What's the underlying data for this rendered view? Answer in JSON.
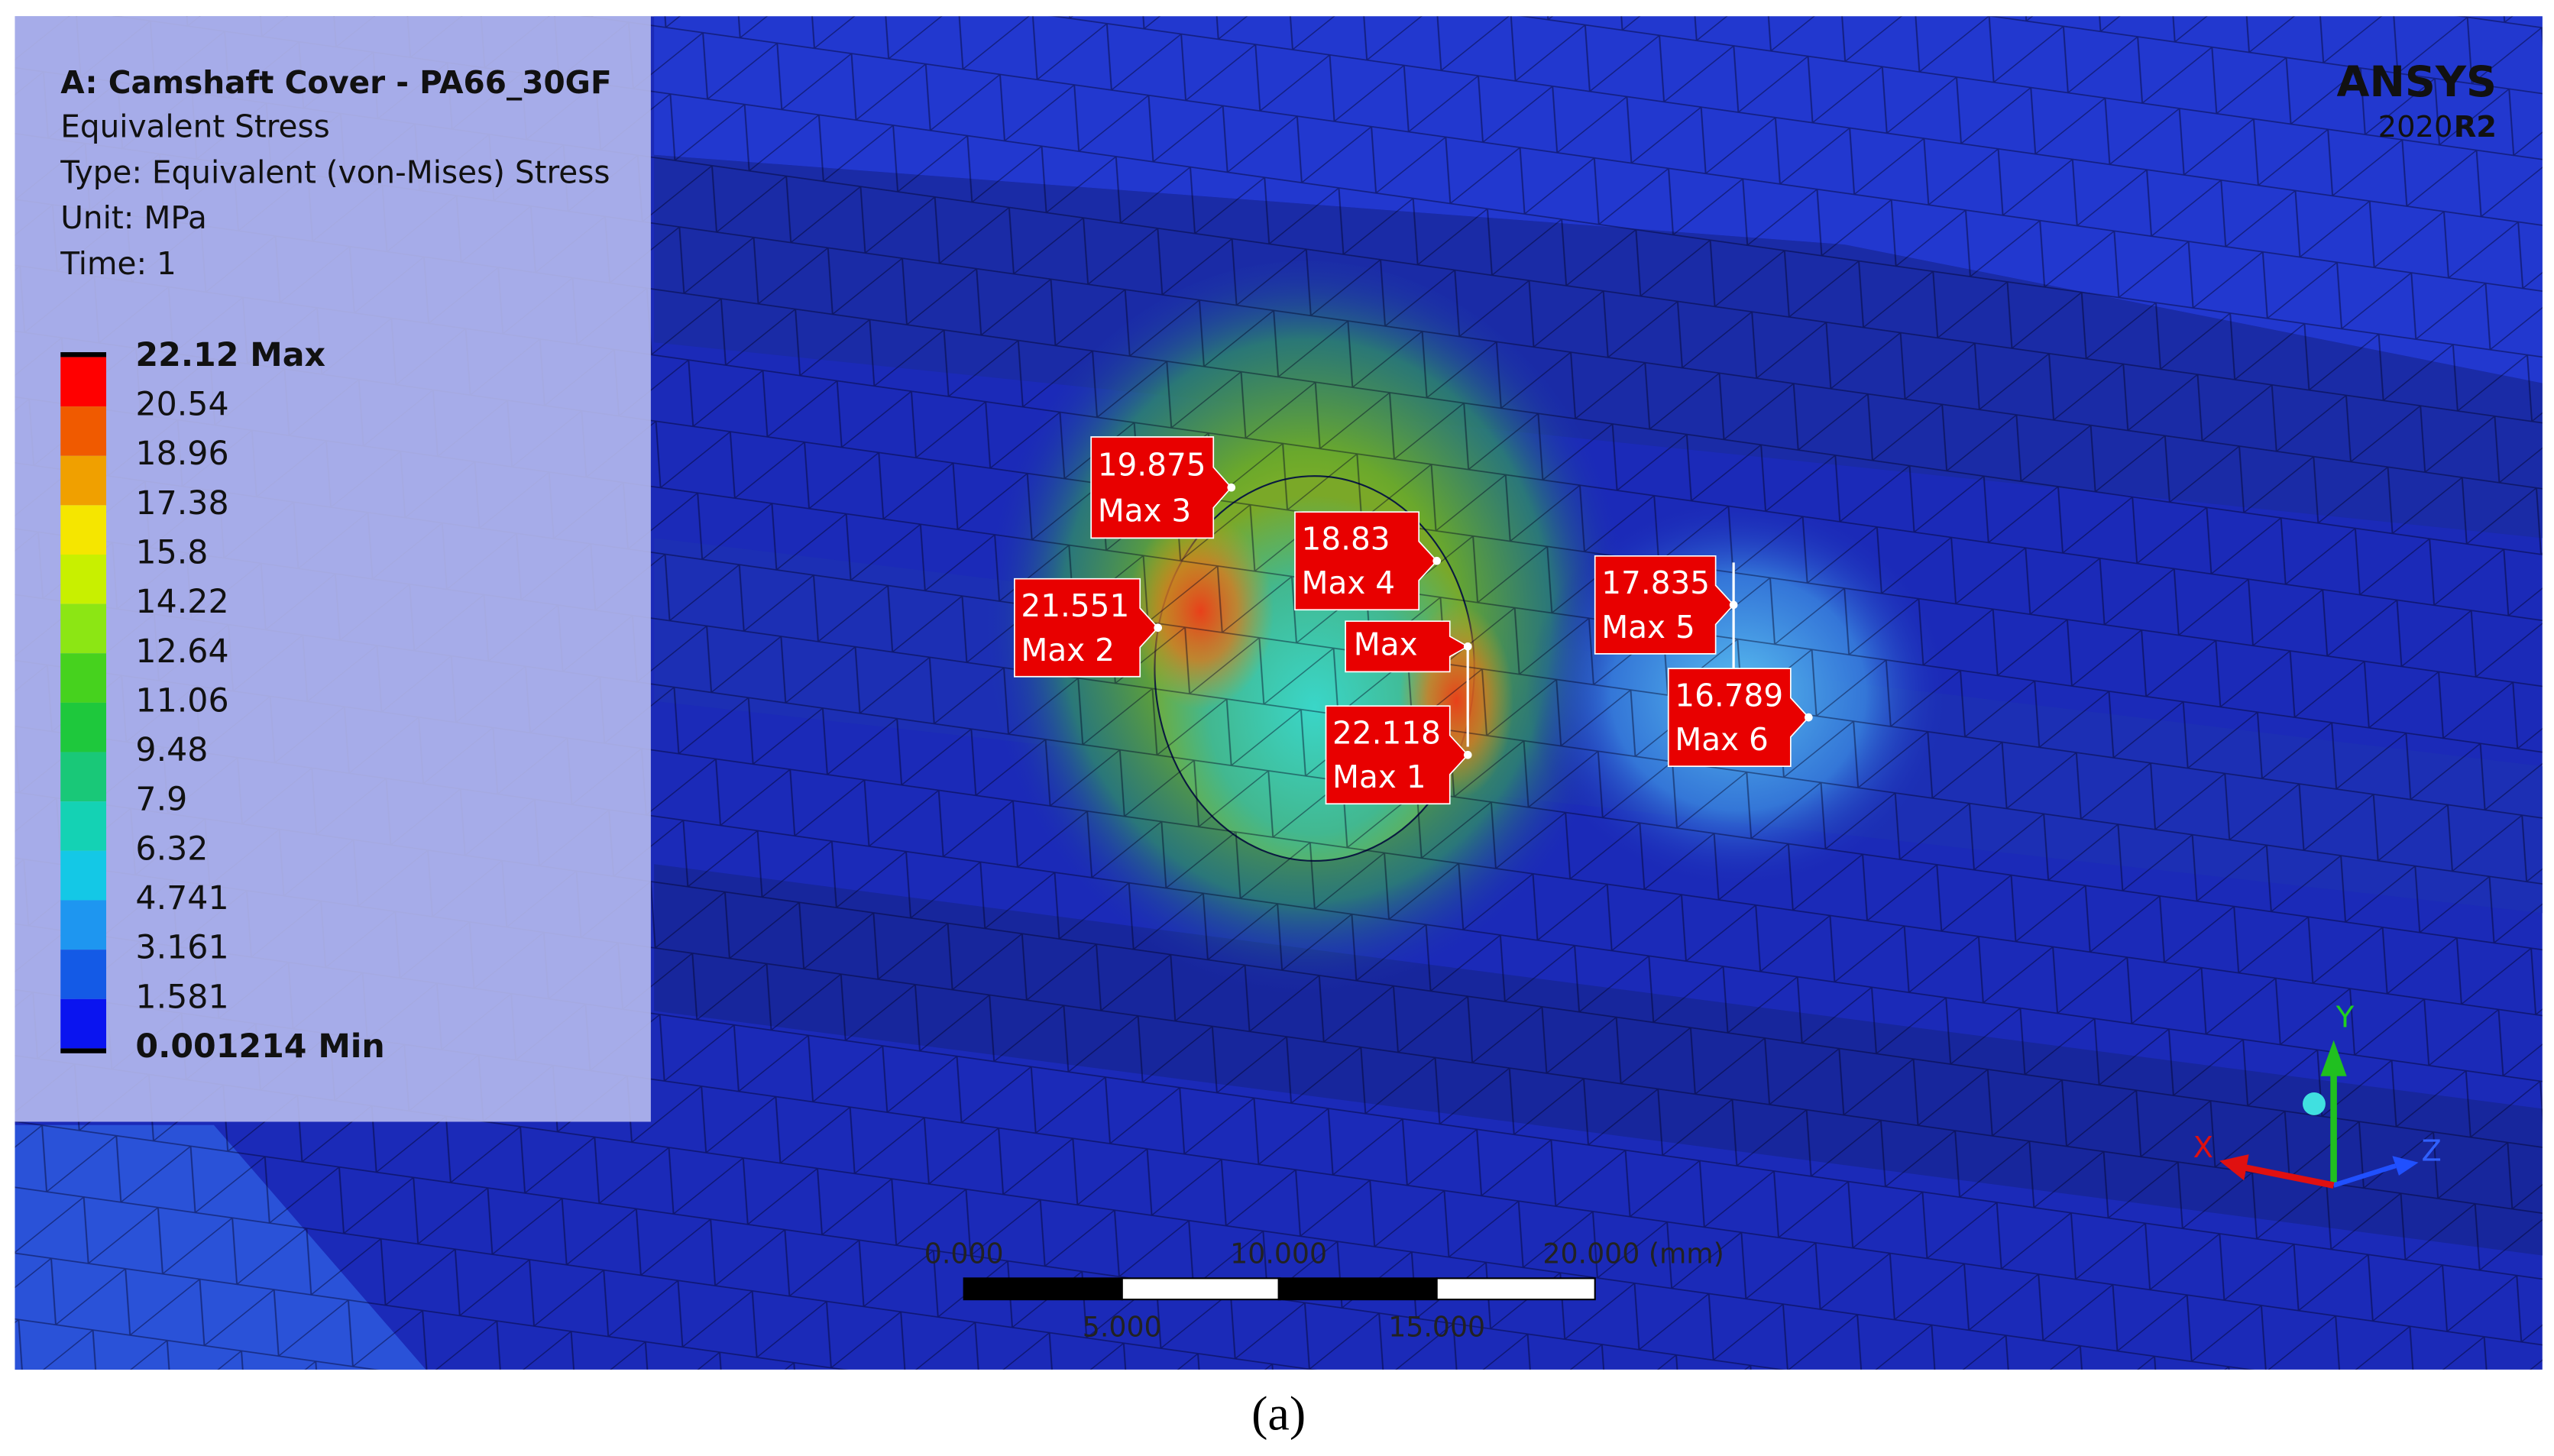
{
  "legend": {
    "title": "A: Camshaft Cover - PA66_30GF",
    "lines": [
      "Equivalent Stress",
      "Type: Equivalent (von-Mises) Stress",
      "Unit: MPa",
      "Time: 1"
    ],
    "levels": [
      "22.12 Max",
      "20.54",
      "18.96",
      "17.38",
      "15.8",
      "14.22",
      "12.64",
      "11.06",
      "9.48",
      "7.9",
      "6.32",
      "4.741",
      "3.161",
      "1.581",
      "0.001214 Min"
    ]
  },
  "logo": {
    "brand": "ANSYS",
    "year": "2020",
    "release": "R2"
  },
  "probes": [
    {
      "value": "19.875",
      "label": "Max 3"
    },
    {
      "value": "21.551",
      "label": "Max 2"
    },
    {
      "value": "18.83",
      "label": "Max 4"
    },
    {
      "label": "Max"
    },
    {
      "value": "22.118",
      "label": "Max 1"
    },
    {
      "value": "17.835",
      "label": "Max 5"
    },
    {
      "value": "16.789",
      "label": "Max 6"
    }
  ],
  "scale_bar": {
    "top_labels": [
      "0.000",
      "10.000",
      "20.000 (mm)"
    ],
    "bottom_labels": [
      "5.000",
      "15.000"
    ]
  },
  "triad": {
    "x": "X",
    "y": "Y",
    "z": "Z"
  },
  "caption": "(a)"
}
